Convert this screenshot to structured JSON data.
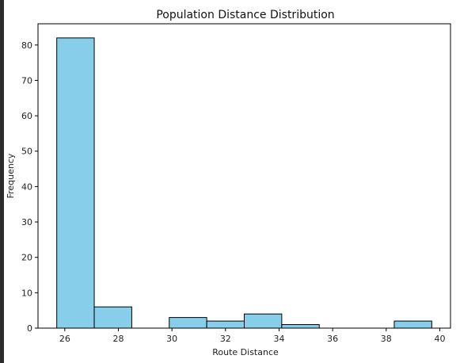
{
  "chart_data": {
    "type": "bar",
    "title": "Population Distance Distribution",
    "xlabel": "Route Distance",
    "ylabel": "Frequency",
    "bins": [
      {
        "x0": 25.7,
        "x1": 27.1,
        "value": 82
      },
      {
        "x0": 27.1,
        "x1": 28.5,
        "value": 6
      },
      {
        "x0": 28.5,
        "x1": 29.9,
        "value": 0
      },
      {
        "x0": 29.9,
        "x1": 31.3,
        "value": 3
      },
      {
        "x0": 31.3,
        "x1": 32.7,
        "value": 2
      },
      {
        "x0": 32.7,
        "x1": 34.1,
        "value": 4
      },
      {
        "x0": 34.1,
        "x1": 35.5,
        "value": 1
      },
      {
        "x0": 35.5,
        "x1": 36.9,
        "value": 0
      },
      {
        "x0": 36.9,
        "x1": 38.3,
        "value": 0
      },
      {
        "x0": 38.3,
        "x1": 39.7,
        "value": 2
      }
    ],
    "xlim": [
      25.0,
      40.4
    ],
    "ylim": [
      0,
      86
    ],
    "xticks": [
      "26",
      "28",
      "30",
      "32",
      "34",
      "36",
      "38",
      "40"
    ],
    "yticks": [
      "0",
      "10",
      "20",
      "30",
      "40",
      "50",
      "60",
      "70",
      "80"
    ],
    "bar_color": "#87ceeb",
    "edge_color": "#000000",
    "grid": false,
    "legend": "none"
  }
}
